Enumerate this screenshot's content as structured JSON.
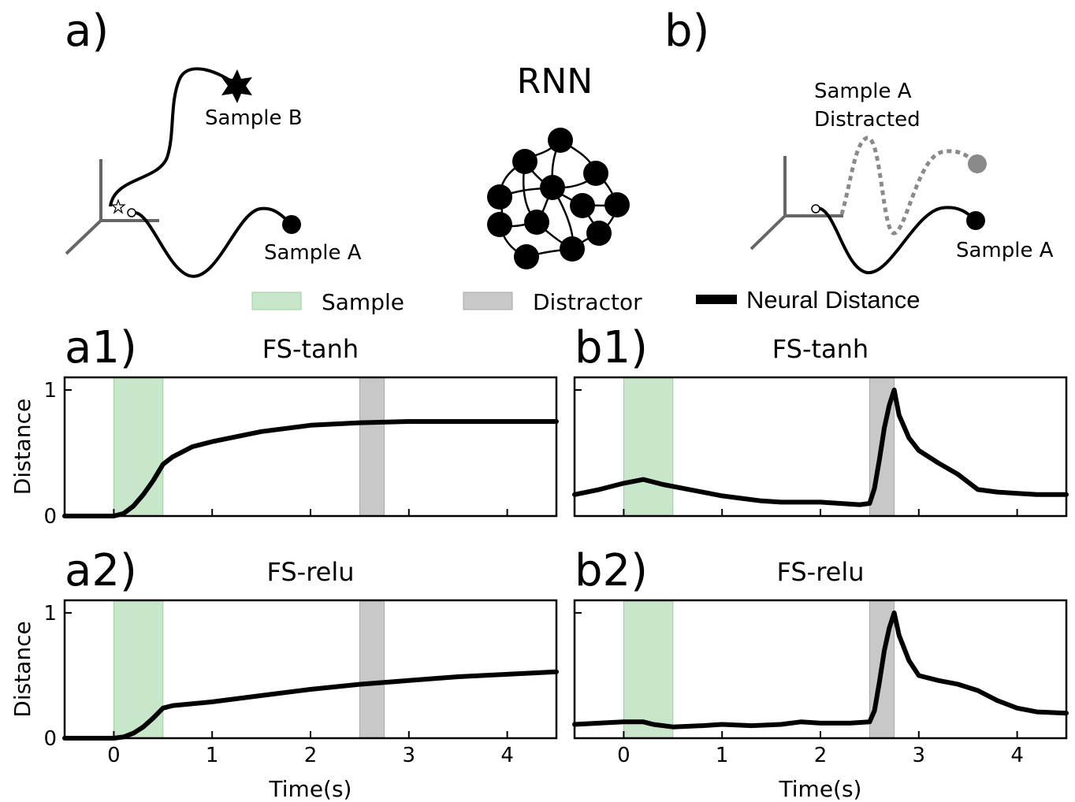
{
  "colors": {
    "sample_span": "#c8e6c9",
    "sample_span_edge": "#9fcf9f",
    "distractor_span": "#c8c8c8",
    "distractor_span_edge": "#a9a9a9",
    "trace": "#000000",
    "axes_gray": "#666666",
    "distracted_gray": "#8a8a8a"
  },
  "schematic_a": {
    "panel_label": "a)",
    "sample_b_label": "Sample B",
    "sample_a_label": "Sample A",
    "rnn_title": "RNN"
  },
  "schematic_b": {
    "panel_label": "b)",
    "distracted_label_line1": "Sample A",
    "distracted_label_line2": "Distracted",
    "sample_a_label": "Sample A"
  },
  "legend": {
    "placement": "top-center",
    "entries": [
      {
        "label": "Sample",
        "kind": "span",
        "color": "#c8e6c9"
      },
      {
        "label": "Distractor",
        "kind": "span",
        "color": "#c8c8c8"
      },
      {
        "label": "Neural Distance",
        "kind": "line",
        "color": "#000000"
      }
    ]
  },
  "chart_data": [
    {
      "type": "line",
      "panel_label": "a1)",
      "title": "FS-tanh",
      "xlabel": "",
      "ylabel": "Distance",
      "xlim": [
        -0.5,
        4.5
      ],
      "ylim": [
        0,
        1.1
      ],
      "yticks": [
        0,
        1
      ],
      "yticklabels": [
        "0",
        "1"
      ],
      "xticks": [
        0,
        1,
        2,
        3,
        4
      ],
      "xticklabels": [],
      "grid": false,
      "sample_span": [
        0,
        0.5
      ],
      "distractor_span": [
        2.5,
        2.75
      ],
      "series": [
        {
          "x": [
            -0.5,
            0,
            0.1,
            0.2,
            0.3,
            0.4,
            0.5,
            0.6,
            0.8,
            1.0,
            1.25,
            1.5,
            2.0,
            2.5,
            3.0,
            3.5,
            4.0,
            4.5
          ],
          "y": [
            0,
            0,
            0.02,
            0.08,
            0.17,
            0.28,
            0.41,
            0.47,
            0.55,
            0.59,
            0.63,
            0.67,
            0.72,
            0.74,
            0.75,
            0.75,
            0.75,
            0.75
          ]
        }
      ]
    },
    {
      "type": "line",
      "panel_label": "b1)",
      "title": "FS-tanh",
      "xlabel": "",
      "ylabel": "",
      "xlim": [
        -0.5,
        4.5
      ],
      "ylim": [
        0,
        1.1
      ],
      "yticks": [
        0,
        1
      ],
      "yticklabels": [],
      "xticks": [
        0,
        1,
        2,
        3,
        4
      ],
      "xticklabels": [],
      "grid": false,
      "sample_span": [
        0,
        0.5
      ],
      "distractor_span": [
        2.5,
        2.75
      ],
      "series": [
        {
          "x": [
            -0.5,
            -0.25,
            0,
            0.2,
            0.4,
            0.6,
            0.8,
            1.0,
            1.2,
            1.4,
            1.6,
            1.8,
            2.0,
            2.2,
            2.4,
            2.5,
            2.55,
            2.6,
            2.65,
            2.7,
            2.75,
            2.8,
            2.9,
            3.0,
            3.2,
            3.4,
            3.6,
            3.8,
            4.0,
            4.2,
            4.5
          ],
          "y": [
            0.17,
            0.21,
            0.26,
            0.29,
            0.25,
            0.22,
            0.19,
            0.16,
            0.14,
            0.12,
            0.11,
            0.11,
            0.11,
            0.1,
            0.09,
            0.1,
            0.22,
            0.45,
            0.7,
            0.88,
            1.0,
            0.8,
            0.62,
            0.52,
            0.42,
            0.33,
            0.21,
            0.19,
            0.18,
            0.17,
            0.17
          ]
        }
      ]
    },
    {
      "type": "line",
      "panel_label": "a2)",
      "title": "FS-relu",
      "xlabel": "Time(s)",
      "ylabel": "Distance",
      "xlim": [
        -0.5,
        4.5
      ],
      "ylim": [
        0,
        1.1
      ],
      "yticks": [
        0,
        1
      ],
      "yticklabels": [
        "0",
        "1"
      ],
      "xticks": [
        0,
        1,
        2,
        3,
        4
      ],
      "xticklabels": [
        "0",
        "1",
        "2",
        "3",
        "4"
      ],
      "grid": false,
      "sample_span": [
        0,
        0.5
      ],
      "distractor_span": [
        2.5,
        2.75
      ],
      "series": [
        {
          "x": [
            -0.5,
            0,
            0.1,
            0.2,
            0.3,
            0.4,
            0.5,
            0.6,
            1.0,
            1.5,
            2.0,
            2.5,
            3.0,
            3.5,
            4.0,
            4.5
          ],
          "y": [
            0,
            0,
            0.01,
            0.04,
            0.09,
            0.16,
            0.24,
            0.26,
            0.29,
            0.34,
            0.39,
            0.43,
            0.46,
            0.49,
            0.51,
            0.53
          ]
        }
      ]
    },
    {
      "type": "line",
      "panel_label": "b2)",
      "title": "FS-relu",
      "xlabel": "Time(s)",
      "ylabel": "",
      "xlim": [
        -0.5,
        4.5
      ],
      "ylim": [
        0,
        1.1
      ],
      "yticks": [
        0,
        1
      ],
      "yticklabels": [],
      "xticks": [
        0,
        1,
        2,
        3,
        4
      ],
      "xticklabels": [
        "0",
        "1",
        "2",
        "3",
        "4"
      ],
      "grid": false,
      "sample_span": [
        0,
        0.5
      ],
      "distractor_span": [
        2.5,
        2.75
      ],
      "series": [
        {
          "x": [
            -0.5,
            -0.25,
            0,
            0.2,
            0.3,
            0.5,
            0.8,
            1.0,
            1.3,
            1.6,
            1.8,
            2.0,
            2.3,
            2.5,
            2.55,
            2.6,
            2.65,
            2.7,
            2.75,
            2.8,
            2.9,
            3.0,
            3.2,
            3.4,
            3.6,
            3.8,
            4.0,
            4.2,
            4.5
          ],
          "y": [
            0.11,
            0.12,
            0.13,
            0.13,
            0.11,
            0.09,
            0.1,
            0.11,
            0.1,
            0.11,
            0.13,
            0.12,
            0.12,
            0.13,
            0.22,
            0.45,
            0.7,
            0.88,
            1.0,
            0.82,
            0.62,
            0.5,
            0.46,
            0.43,
            0.38,
            0.3,
            0.24,
            0.21,
            0.2
          ]
        }
      ]
    }
  ]
}
